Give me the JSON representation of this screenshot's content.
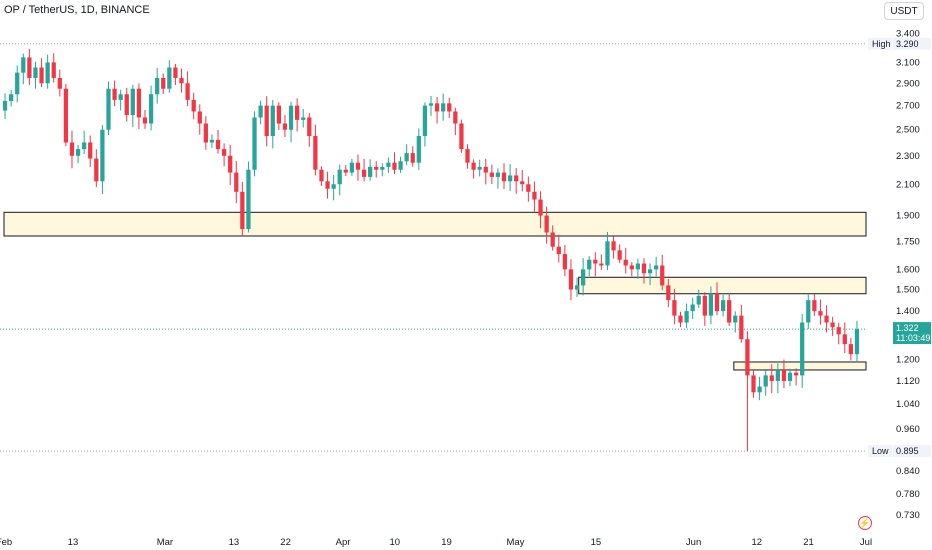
{
  "header": {
    "title": "OP / TetherUS, 1D, BINANCE"
  },
  "toolbar": {
    "currency": "USDT"
  },
  "markers": {
    "high_label": "High",
    "high_value": "3.290",
    "low_label": "Low",
    "low_value": "0.895",
    "last_price": "1.322",
    "countdown": "11:03:49"
  },
  "colors": {
    "up": "#26a69a",
    "down": "#f23645",
    "zone_fill": "#fff8dc",
    "grid_dotted": "#9fa6ad",
    "last_line": "#26a69a"
  },
  "icons": {
    "logo": "lightning-icon"
  },
  "chart_data": {
    "type": "candlestick",
    "title": "OP / TetherUS, 1D, BINANCE",
    "y_scale": "log",
    "ylim": [
      0.7,
      3.55
    ],
    "y_ticks": [
      "3.400",
      "3.100",
      "2.900",
      "2.700",
      "2.500",
      "2.300",
      "2.100",
      "1.900",
      "1.750",
      "1.600",
      "1.500",
      "1.400",
      "1.200",
      "1.120",
      "1.040",
      "0.960",
      "0.840",
      "0.780",
      "0.730"
    ],
    "x_ticks": [
      "Feb",
      "13",
      "Mar",
      "13",
      "22",
      "Apr",
      "10",
      "19",
      "May",
      "15",
      "Jun",
      "12",
      "21",
      "Jul"
    ],
    "x_range": [
      "2023-02-01",
      "2023-07-01"
    ],
    "high": 3.29,
    "low": 0.895,
    "last": 1.322,
    "zones": [
      {
        "from": 1.78,
        "to": 1.92,
        "start": "2023-02-01",
        "end": "2023-07-01"
      },
      {
        "from": 1.48,
        "to": 1.56,
        "start": "2023-05-12",
        "end": "2023-07-01"
      },
      {
        "from": 1.16,
        "to": 1.19,
        "start": "2023-06-08",
        "end": "2023-07-01"
      }
    ],
    "closes": [
      2.74,
      2.8,
      3.0,
      3.15,
      2.95,
      3.05,
      2.9,
      3.1,
      2.95,
      2.85,
      2.4,
      2.3,
      2.35,
      2.4,
      2.28,
      2.12,
      2.5,
      2.85,
      2.75,
      2.8,
      2.62,
      2.85,
      2.6,
      2.55,
      2.8,
      2.95,
      2.85,
      3.05,
      2.95,
      2.9,
      2.75,
      2.65,
      2.55,
      2.4,
      2.42,
      2.35,
      2.3,
      2.18,
      2.05,
      1.82,
      2.2,
      2.6,
      2.7,
      2.45,
      2.7,
      2.55,
      2.5,
      2.7,
      2.58,
      2.6,
      2.45,
      2.2,
      2.12,
      2.07,
      2.1,
      2.2,
      2.18,
      2.25,
      2.2,
      2.15,
      2.22,
      2.2,
      2.22,
      2.25,
      2.2,
      2.26,
      2.32,
      2.25,
      2.45,
      2.7,
      2.72,
      2.65,
      2.72,
      2.65,
      2.55,
      2.35,
      2.25,
      2.2,
      2.22,
      2.18,
      2.15,
      2.18,
      2.12,
      2.16,
      2.12,
      2.1,
      2.05,
      2.0,
      1.9,
      1.8,
      1.72,
      1.68,
      1.6,
      1.5,
      1.52,
      1.6,
      1.65,
      1.63,
      1.62,
      1.75,
      1.7,
      1.65,
      1.62,
      1.6,
      1.63,
      1.58,
      1.6,
      1.62,
      1.52,
      1.45,
      1.38,
      1.35,
      1.4,
      1.43,
      1.47,
      1.38,
      1.48,
      1.4,
      1.45,
      1.35,
      1.38,
      1.28,
      1.14,
      1.08,
      1.1,
      1.14,
      1.12,
      1.16,
      1.12,
      1.15,
      1.14,
      1.35,
      1.45,
      1.4,
      1.38,
      1.35,
      1.33,
      1.3,
      1.26,
      1.22,
      1.322
    ],
    "series": [
      {
        "name": "OP / TetherUS",
        "color_up": "#26a69a",
        "color_down": "#f23645"
      }
    ]
  }
}
